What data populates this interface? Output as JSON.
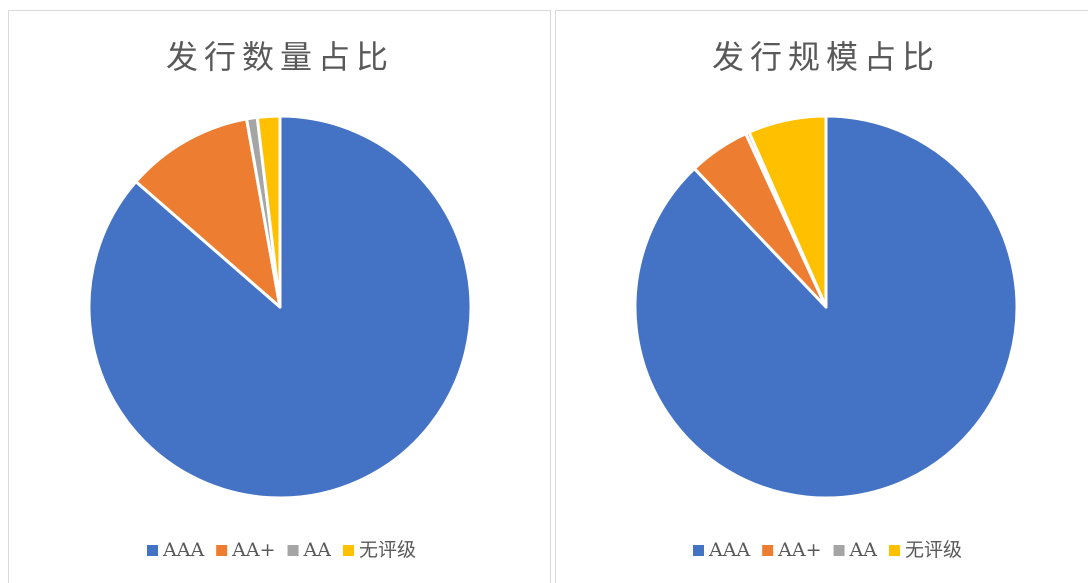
{
  "chart_data": [
    {
      "type": "pie",
      "title": "发行数量占比",
      "categories": [
        "AAA",
        "AA+",
        "AA",
        "无评级"
      ],
      "values": [
        86.4,
        10.8,
        0.9,
        1.9
      ],
      "colors": [
        "#4472c4",
        "#ed7d31",
        "#a5a5a5",
        "#ffc000"
      ]
    },
    {
      "type": "pie",
      "title": "发行规模占比",
      "categories": [
        "AAA",
        "AA+",
        "AA",
        "无评级"
      ],
      "values": [
        87.9,
        5.2,
        0.3,
        6.6
      ],
      "colors": [
        "#4472c4",
        "#ed7d31",
        "#a5a5a5",
        "#ffc000"
      ]
    }
  ]
}
